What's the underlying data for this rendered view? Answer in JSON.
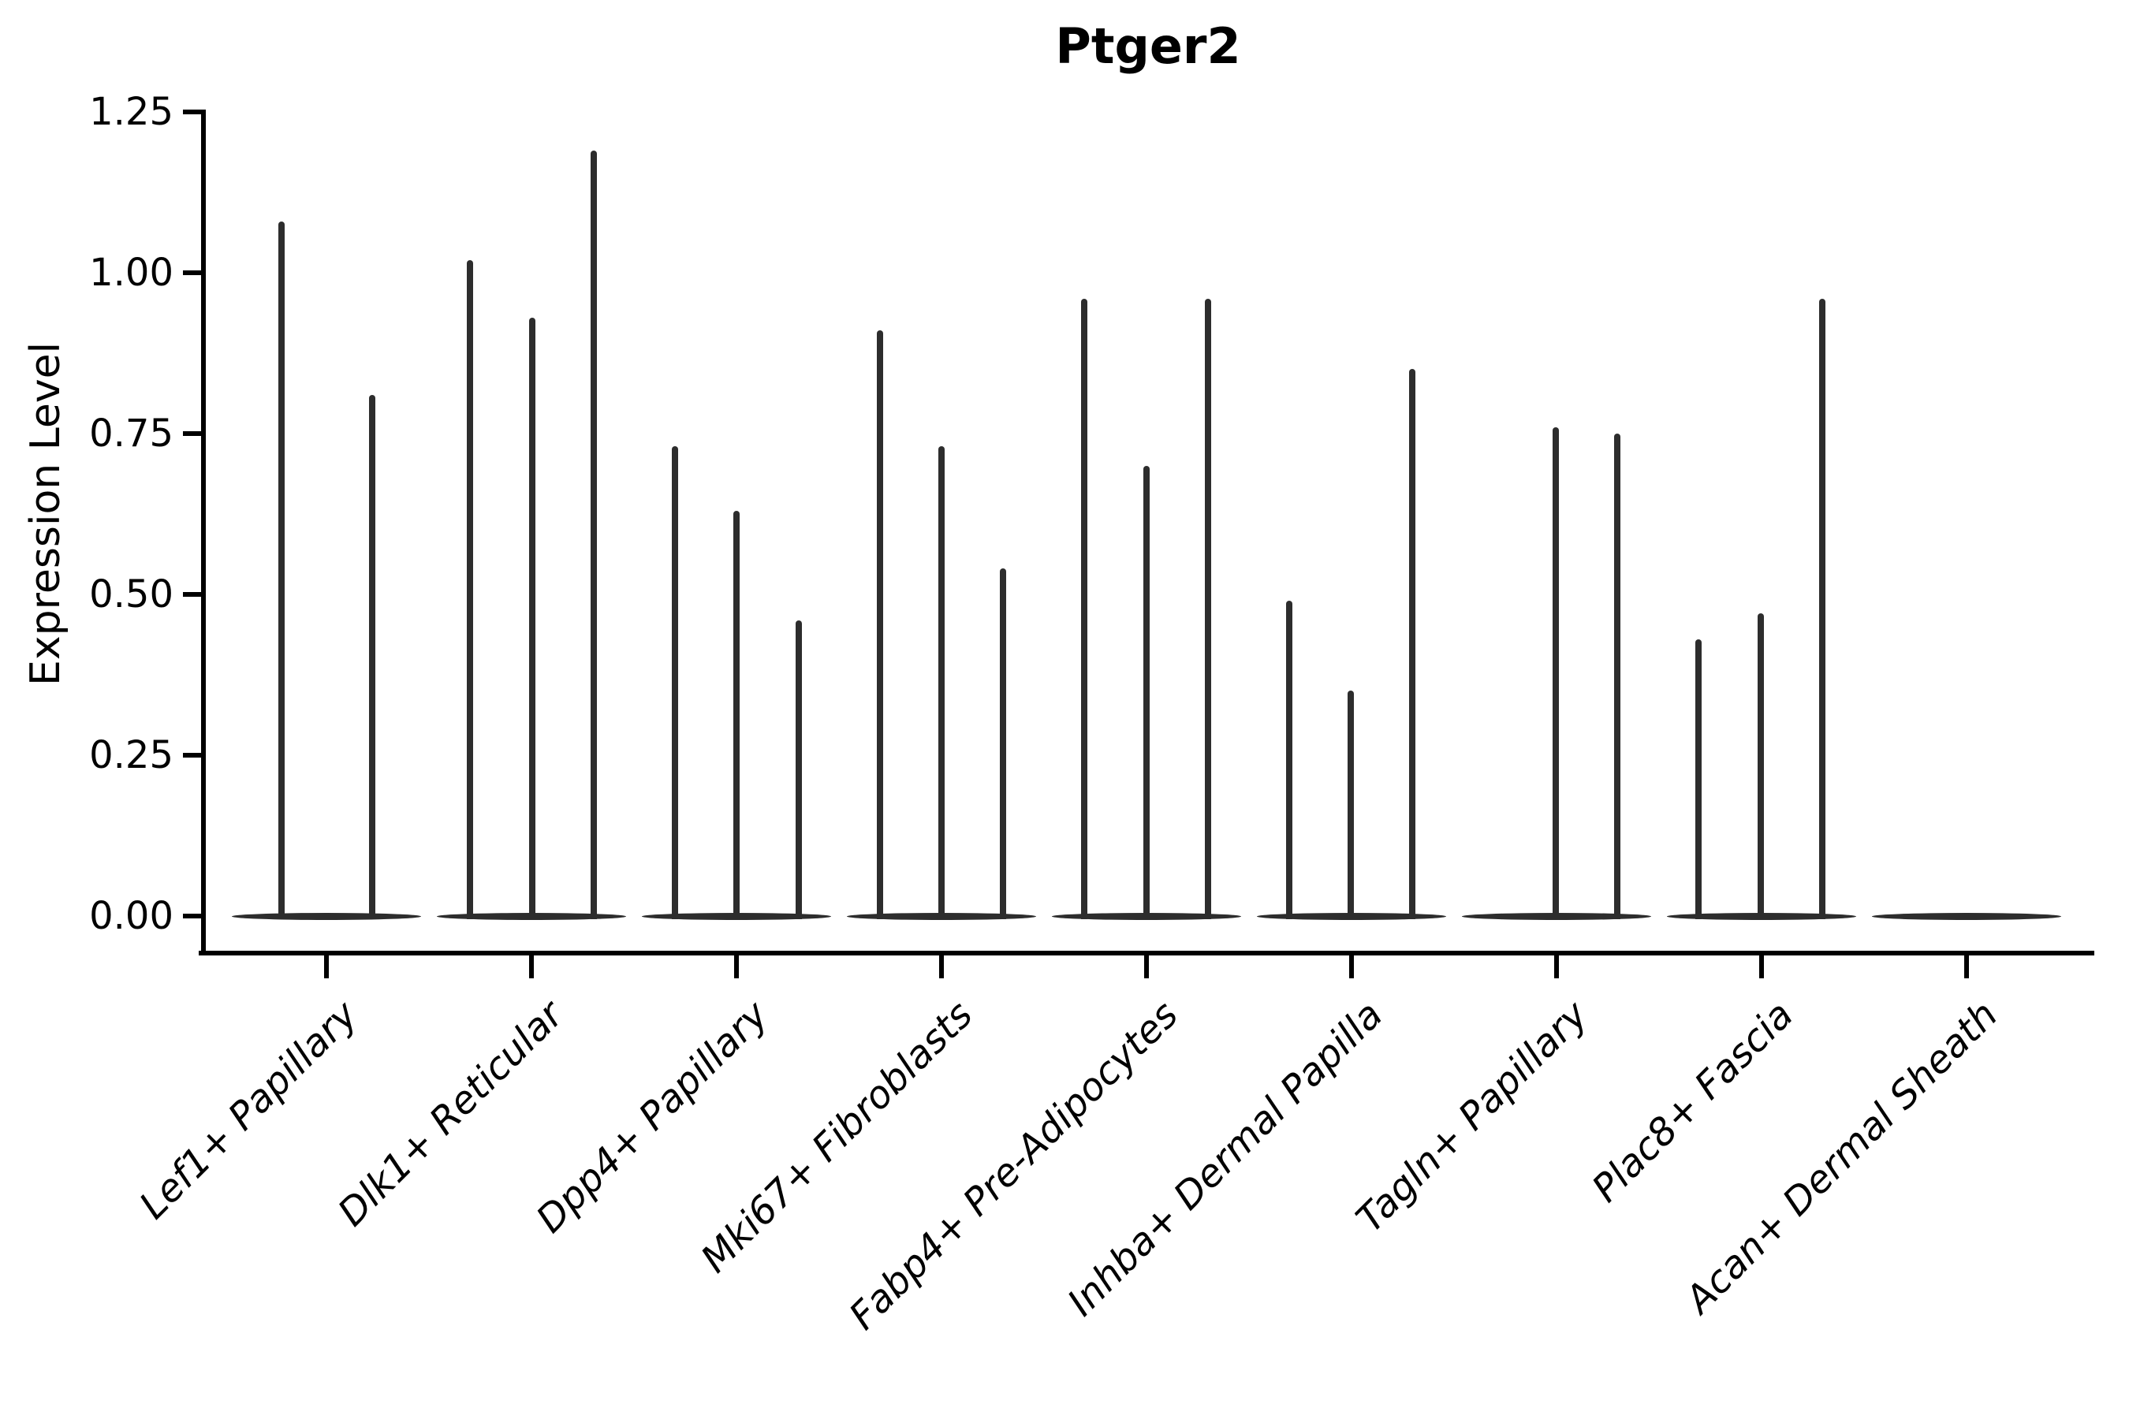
{
  "chart_data": {
    "type": "violin",
    "title": "Ptger2",
    "ylabel": "Expression Level",
    "xlabel": "",
    "ylim": [
      0,
      1.25
    ],
    "grid": false,
    "legend": "none",
    "yticks": [
      "0.00",
      "0.25",
      "0.50",
      "0.75",
      "1.00",
      "1.25"
    ],
    "violin_color": "#2d2d2d",
    "axis_color": "#000000",
    "note": "Each category shows up to three very thin spike-like violins (sparse expression); every group has a flat basal violin band at expression 0.",
    "categories": [
      {
        "label": "Lef1+ Papillary",
        "spikes": [
          {
            "offset": -57,
            "value": 1.08
          },
          {
            "offset": 58,
            "value": 0.81
          }
        ]
      },
      {
        "label": "Dlk1+ Reticular",
        "spikes": [
          {
            "offset": -78,
            "value": 1.02
          },
          {
            "offset": 1,
            "value": 0.93
          },
          {
            "offset": 79,
            "value": 1.19
          }
        ]
      },
      {
        "label": "Dpp4+ Papillary",
        "spikes": [
          {
            "offset": -78,
            "value": 0.73
          },
          {
            "offset": 0,
            "value": 0.63
          },
          {
            "offset": 79,
            "value": 0.46
          }
        ]
      },
      {
        "label": "Mki67+ Fibroblasts",
        "spikes": [
          {
            "offset": -78,
            "value": 0.91
          },
          {
            "offset": 0,
            "value": 0.73
          },
          {
            "offset": 78,
            "value": 0.54
          }
        ]
      },
      {
        "label": "Fabp4+ Pre-Adipocytes",
        "spikes": [
          {
            "offset": -79,
            "value": 0.96
          },
          {
            "offset": 0,
            "value": 0.7
          },
          {
            "offset": 78,
            "value": 0.96
          }
        ]
      },
      {
        "label": "Inhba+ Dermal Papilla",
        "spikes": [
          {
            "offset": -79,
            "value": 0.49
          },
          {
            "offset": -1,
            "value": 0.35
          },
          {
            "offset": 77,
            "value": 0.85
          }
        ]
      },
      {
        "label": "Tagln+ Papillary",
        "spikes": [
          {
            "offset": -1,
            "value": 0.76
          },
          {
            "offset": 77,
            "value": 0.75
          }
        ]
      },
      {
        "label": "Plac8+ Fascia",
        "spikes": [
          {
            "offset": -80,
            "value": 0.43
          },
          {
            "offset": -1,
            "value": 0.47
          },
          {
            "offset": 77,
            "value": 0.96
          }
        ]
      },
      {
        "label": "Acan+ Dermal Sheath",
        "spikes": []
      }
    ]
  }
}
